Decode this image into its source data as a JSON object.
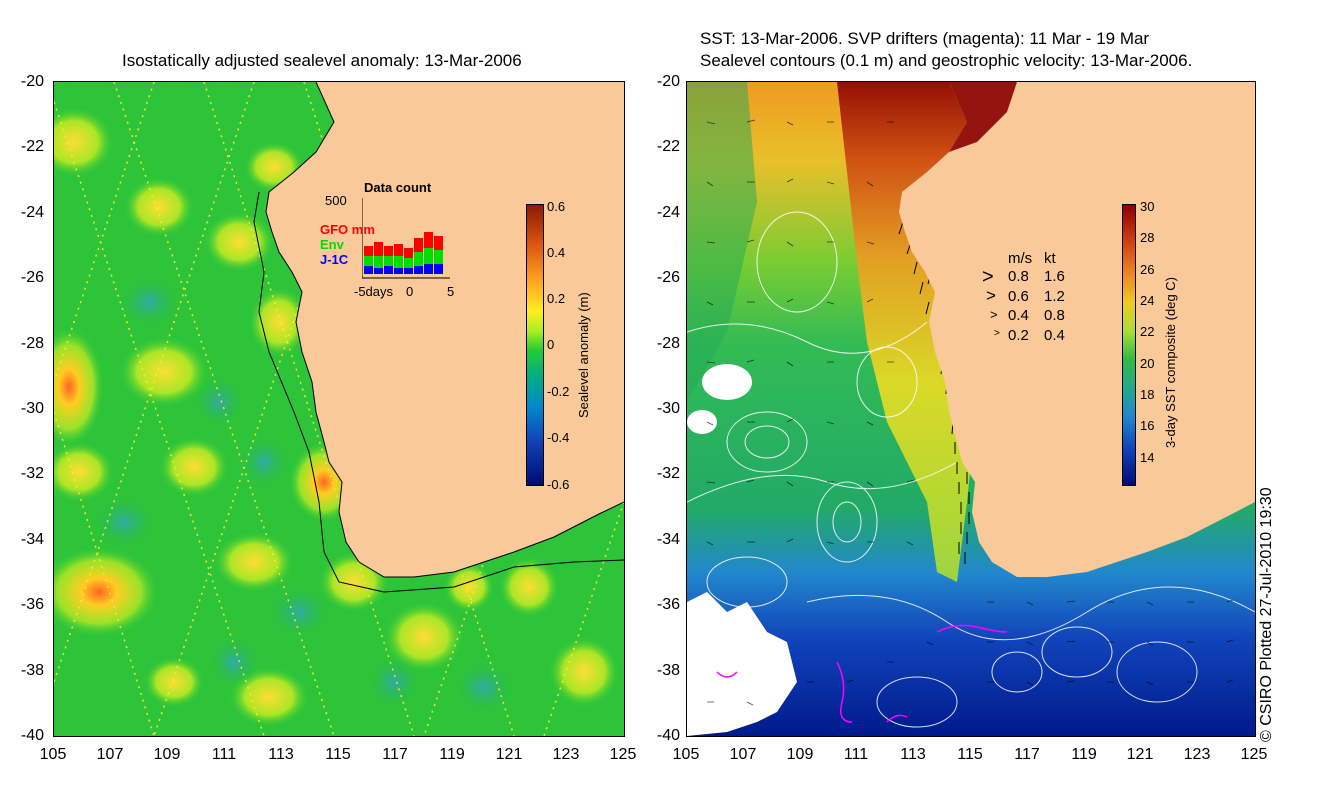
{
  "left_panel": {
    "title": "Isostatically adjusted sealevel anomaly: 13-Mar-2006",
    "y_ticks": [
      "-20",
      "-22",
      "-24",
      "-26",
      "-28",
      "-30",
      "-32",
      "-34",
      "-36",
      "-38",
      "-40"
    ],
    "x_ticks": [
      "105",
      "107",
      "109",
      "111",
      "113",
      "115",
      "117",
      "119",
      "121",
      "123",
      "125"
    ],
    "colorbar": {
      "label": "Sealevel anomaly (m)",
      "ticks": [
        "0.6",
        "0.4",
        "0.2",
        "0",
        "-0.2",
        "-0.4",
        "-0.6"
      ]
    },
    "inset": {
      "title": "Data count",
      "max_label": "500",
      "x_labels": [
        "-5days",
        "0",
        "5"
      ],
      "legend": [
        {
          "label": "GFO mm",
          "color": "#ff0000"
        },
        {
          "label": "Env",
          "color": "#00dd00"
        },
        {
          "label": "J-1C",
          "color": "#0000ff"
        }
      ]
    }
  },
  "right_panel": {
    "title_line1": "SST: 13-Mar-2006. SVP drifters (magenta): 11 Mar - 19 Mar",
    "title_line2": "Sealevel contours (0.1 m) and geostrophic velocity: 13-Mar-2006.",
    "y_ticks": [
      "-20",
      "-22",
      "-24",
      "-26",
      "-28",
      "-30",
      "-32",
      "-34",
      "-36",
      "-38",
      "-40"
    ],
    "x_ticks": [
      "105",
      "107",
      "109",
      "111",
      "113",
      "115",
      "117",
      "119",
      "121",
      "123",
      "125"
    ],
    "colorbar": {
      "label": "3-day SST composite (deg C)",
      "ticks": [
        "30",
        "28",
        "26",
        "24",
        "22",
        "20",
        "18",
        "16",
        "14"
      ]
    },
    "velocity_legend": {
      "header_ms": "m/s",
      "header_kt": "kt",
      "rows": [
        {
          "ms": "0.8",
          "kt": "1.6"
        },
        {
          "ms": "0.6",
          "kt": "1.2"
        },
        {
          "ms": "0.4",
          "kt": "0.8"
        },
        {
          "ms": "0.2",
          "kt": "0.4"
        }
      ]
    }
  },
  "credit": "© CSIRO Plotted 27-Jul-2010 19:30",
  "colors": {
    "land": "#f9c99a",
    "sla_green": "#22cc22",
    "sst_red": "#8b0000",
    "sst_blue": "#001a8c",
    "drifter": "#ff00ff"
  }
}
